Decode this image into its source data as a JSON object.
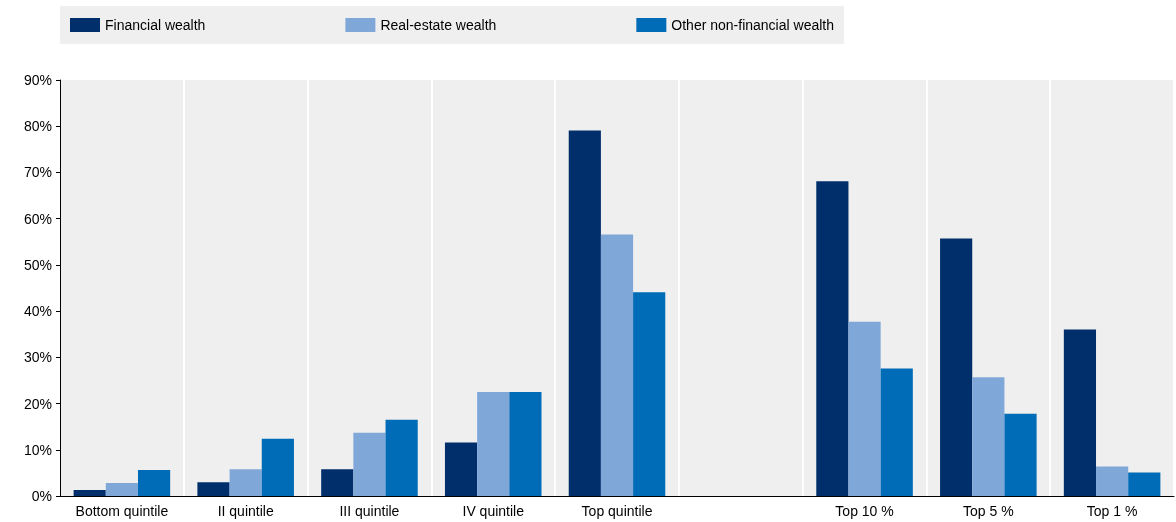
{
  "chart_data": {
    "type": "bar",
    "categories": [
      "Bottom quintile",
      "II quintile",
      "III quintile",
      "IV quintile",
      "Top quintile",
      null,
      "Top 10 %",
      "Top 5 %",
      "Top 1 %"
    ],
    "series": [
      {
        "name": "Financial wealth",
        "color": "#002f6c",
        "values": [
          1.3,
          3.0,
          5.8,
          11.6,
          79.1,
          null,
          68.1,
          55.7,
          36.0
        ]
      },
      {
        "name": "Real-estate wealth",
        "color": "#7fa8d9",
        "values": [
          2.8,
          5.8,
          13.7,
          22.5,
          56.6,
          null,
          37.7,
          25.7,
          6.4
        ]
      },
      {
        "name": "Other non-financial wealth",
        "color": "#006bb6",
        "values": [
          5.6,
          12.4,
          16.5,
          22.5,
          44.1,
          null,
          27.6,
          17.8,
          5.1
        ]
      }
    ],
    "ylim": [
      0,
      90
    ],
    "yticks": [
      {
        "value": 0,
        "label": "0%"
      },
      {
        "value": 10,
        "label": "10%"
      },
      {
        "value": 20,
        "label": "20%"
      },
      {
        "value": 30,
        "label": "30%"
      },
      {
        "value": 40,
        "label": "40%"
      },
      {
        "value": 50,
        "label": "50%"
      },
      {
        "value": 60,
        "label": "60%"
      },
      {
        "value": 70,
        "label": "70%"
      },
      {
        "value": 80,
        "label": "80%"
      },
      {
        "value": 90,
        "label": "90%"
      }
    ],
    "grid": "x",
    "legend": "top"
  }
}
